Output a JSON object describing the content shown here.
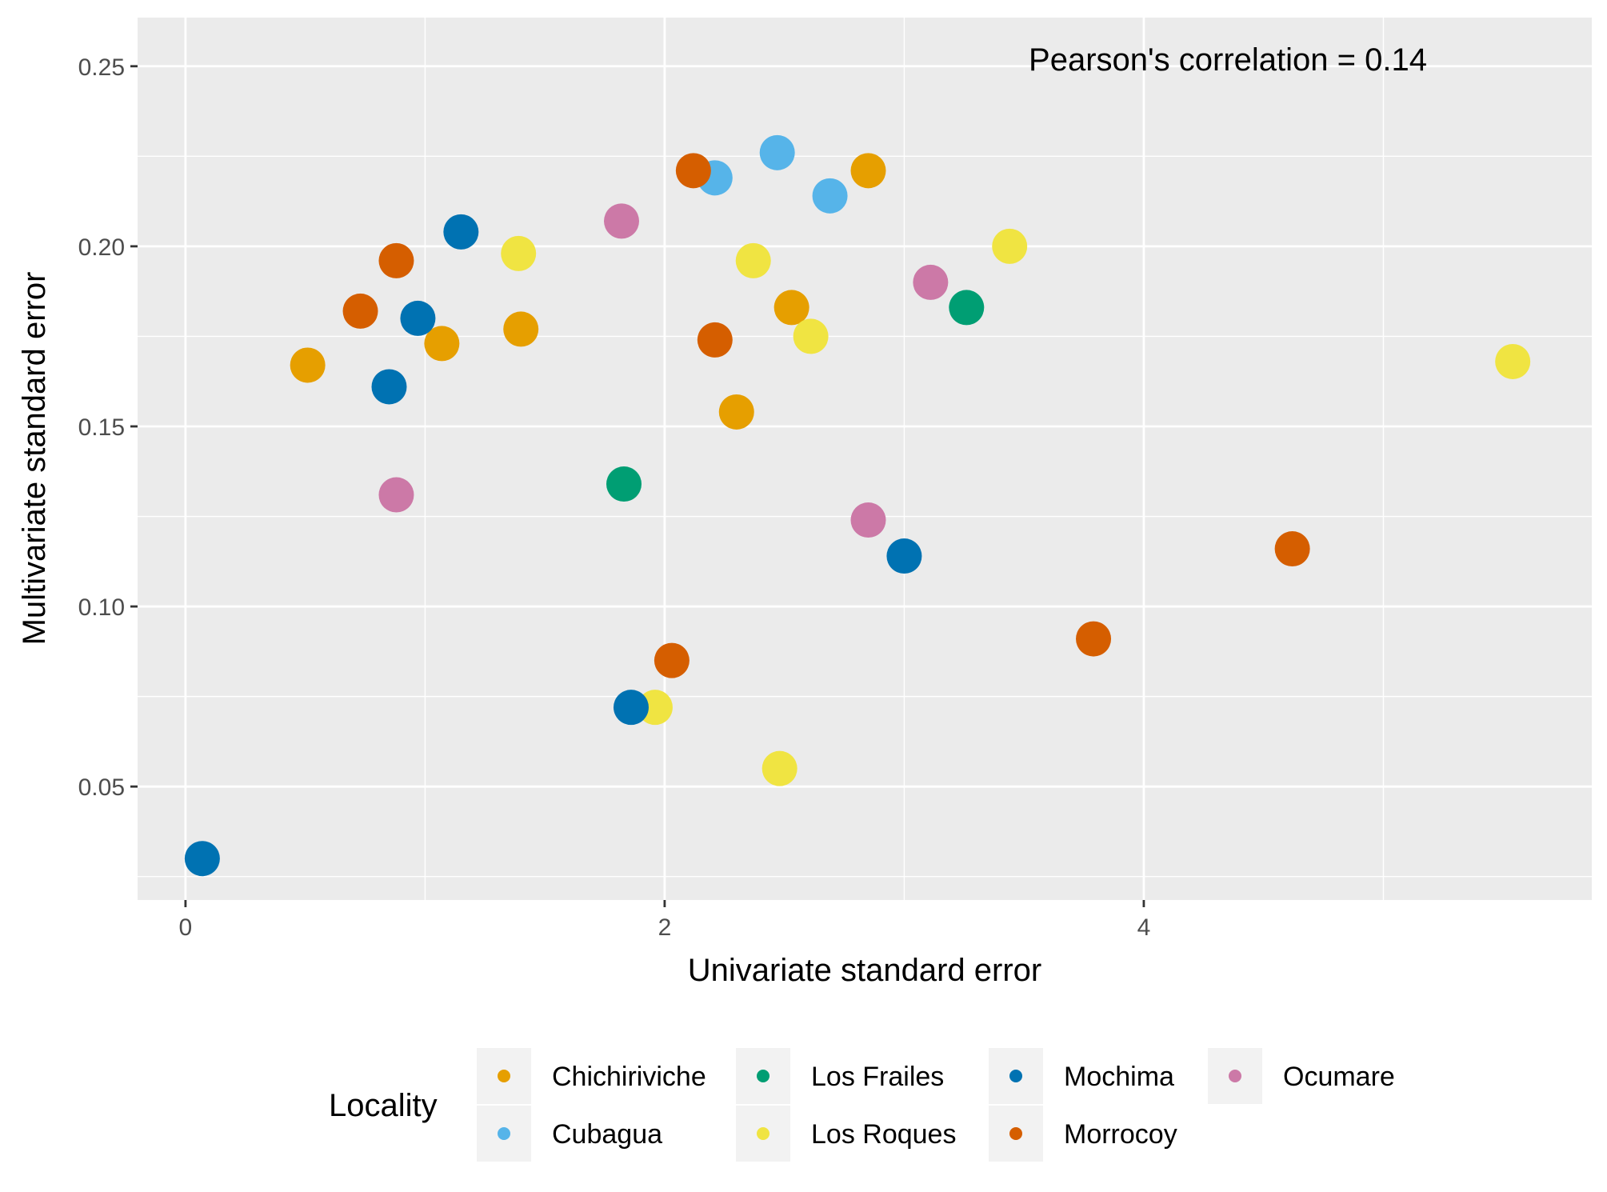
{
  "chart_data": {
    "type": "scatter",
    "xlabel": "Univariate standard error",
    "ylabel": "Multivariate standard error",
    "xlim": [
      -0.2,
      5.87
    ],
    "ylim": [
      0.0185,
      0.2635
    ],
    "x_ticks": [
      0,
      2,
      4
    ],
    "x_tick_labels": [
      "0",
      "2",
      "4"
    ],
    "x_minor_ticks": [
      1,
      3,
      5
    ],
    "y_ticks": [
      0.05,
      0.1,
      0.15,
      0.2,
      0.25
    ],
    "y_tick_labels": [
      "0.05",
      "0.10",
      "0.15",
      "0.20",
      "0.25"
    ],
    "y_minor_ticks": [
      0.025,
      0.075,
      0.125,
      0.175,
      0.225
    ],
    "grid": true,
    "annotation": "Pearson's correlation = 0.14",
    "legend": {
      "title": "Locality",
      "placement": "bottom"
    },
    "series": [
      {
        "name": "Chichiriviche",
        "color": "#E69F00",
        "points": [
          [
            0.51,
            0.167
          ],
          [
            1.07,
            0.173
          ],
          [
            1.4,
            0.177
          ],
          [
            2.3,
            0.154
          ],
          [
            2.53,
            0.183
          ],
          [
            2.85,
            0.221
          ]
        ]
      },
      {
        "name": "Cubagua",
        "color": "#56B4E9",
        "points": [
          [
            2.21,
            0.219
          ],
          [
            2.47,
            0.226
          ],
          [
            2.69,
            0.214
          ]
        ]
      },
      {
        "name": "Los Frailes",
        "color": "#009E73",
        "points": [
          [
            1.83,
            0.134
          ],
          [
            3.26,
            0.183
          ]
        ]
      },
      {
        "name": "Los Roques",
        "color": "#F0E442",
        "points": [
          [
            1.39,
            0.198
          ],
          [
            1.96,
            0.072
          ],
          [
            2.37,
            0.196
          ],
          [
            2.48,
            0.055
          ],
          [
            2.61,
            0.175
          ],
          [
            3.44,
            0.2
          ],
          [
            5.54,
            0.168
          ]
        ]
      },
      {
        "name": "Mochima",
        "color": "#0072B2",
        "points": [
          [
            0.07,
            0.03
          ],
          [
            0.85,
            0.161
          ],
          [
            0.97,
            0.18
          ],
          [
            1.15,
            0.204
          ],
          [
            1.86,
            0.072
          ],
          [
            3.0,
            0.114
          ]
        ]
      },
      {
        "name": "Morrocoy",
        "color": "#D55E00",
        "points": [
          [
            0.73,
            0.182
          ],
          [
            0.88,
            0.196
          ],
          [
            2.03,
            0.085
          ],
          [
            2.12,
            0.221
          ],
          [
            2.21,
            0.174
          ],
          [
            3.79,
            0.091
          ],
          [
            4.62,
            0.116
          ]
        ]
      },
      {
        "name": "Ocumare",
        "color": "#CC79A7",
        "points": [
          [
            0.88,
            0.131
          ],
          [
            1.82,
            0.207
          ],
          [
            2.85,
            0.124
          ],
          [
            3.11,
            0.19
          ]
        ]
      }
    ]
  }
}
